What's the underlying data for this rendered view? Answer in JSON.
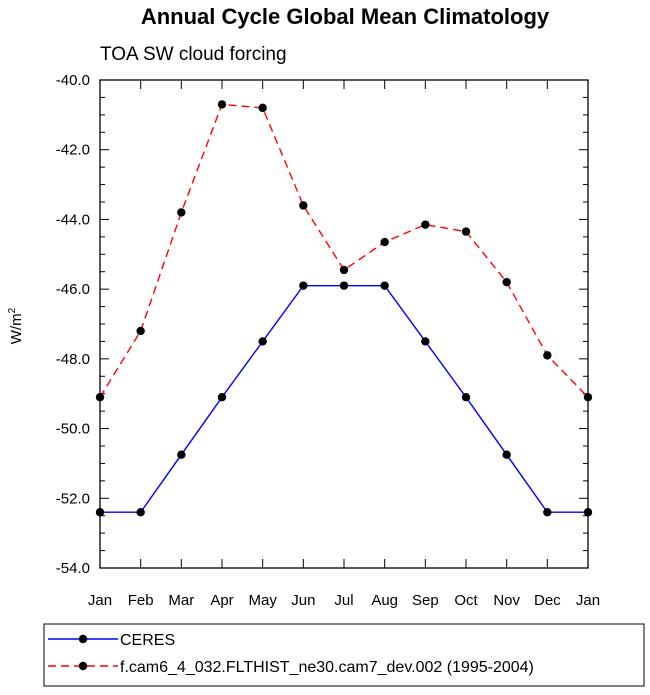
{
  "chart_data": {
    "type": "line",
    "title": "Annual Cycle Global Mean Climatology",
    "subtitle": "TOA SW cloud forcing",
    "ylabel": "W/m",
    "ylabel_sup": "2",
    "ylim": [
      -54.0,
      -40.0
    ],
    "yticks": [
      "-40.0",
      "-42.0",
      "-44.0",
      "-46.0",
      "-48.0",
      "-50.0",
      "-52.0",
      "-54.0"
    ],
    "ytick_values": [
      -40,
      -42,
      -44,
      -46,
      -48,
      -50,
      -52,
      -54
    ],
    "categories": [
      "Jan",
      "Feb",
      "Mar",
      "Apr",
      "May",
      "Jun",
      "Jul",
      "Aug",
      "Sep",
      "Oct",
      "Nov",
      "Dec",
      "Jan"
    ],
    "series": [
      {
        "name": "CERES",
        "color": "#0000ff",
        "dash": "solid",
        "values": [
          -52.4,
          -52.4,
          -50.75,
          -49.1,
          -47.5,
          -45.9,
          -45.9,
          -45.9,
          -47.5,
          -49.1,
          -50.75,
          -52.4,
          -52.4
        ]
      },
      {
        "name": "f.cam6_4_032.FLTHIST_ne30.cam7_dev.002 (1995-2004)",
        "color": "#ff0000",
        "dash": "dashed",
        "values": [
          -49.1,
          -47.2,
          -43.8,
          -40.7,
          -40.8,
          -43.6,
          -45.45,
          -44.65,
          -44.15,
          -44.35,
          -45.8,
          -47.9,
          -49.1
        ]
      }
    ],
    "legend_position": "bottom",
    "grid": false
  }
}
